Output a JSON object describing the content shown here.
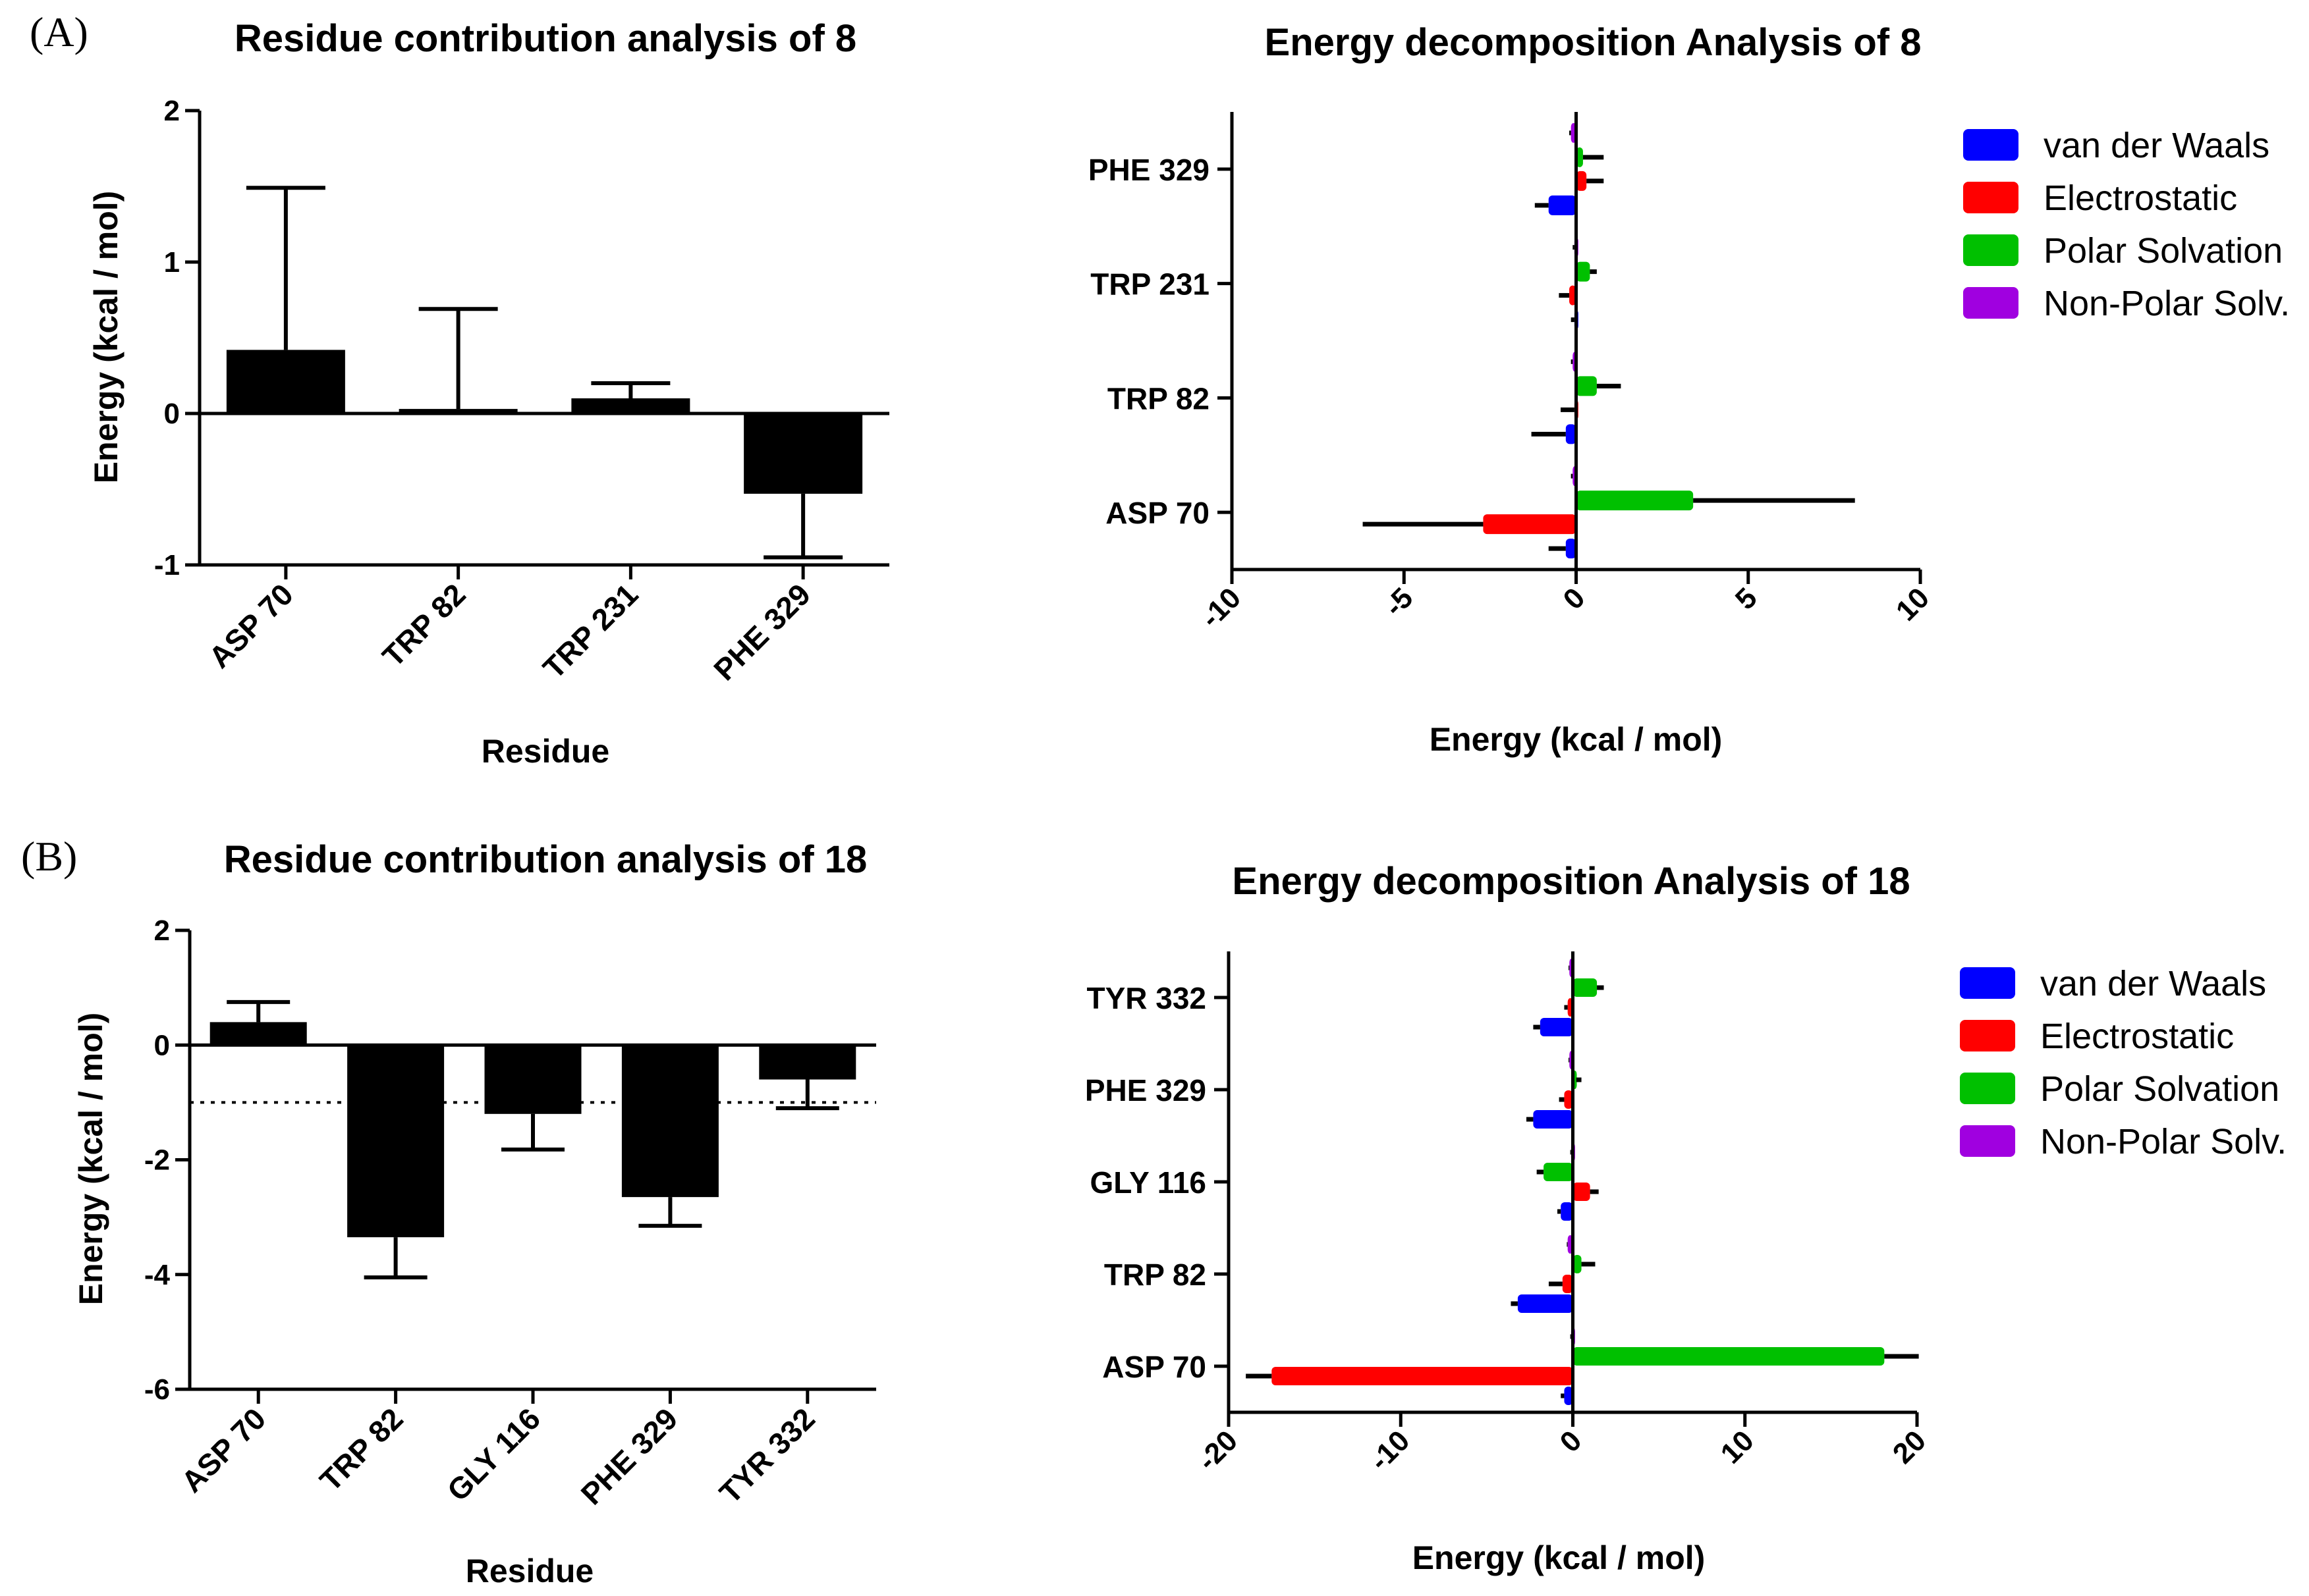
{
  "panel_labels": [
    "(A)",
    "(B)"
  ],
  "colors": {
    "bar": "#000000",
    "van_der_waals": "#0000FF",
    "electrostatic": "#FF0000",
    "polar_solvation": "#00C000",
    "non_polar_solv": "#A000E0"
  },
  "chart_data": [
    {
      "id": "A1",
      "type": "bar",
      "title": "Residue contribution analysis of 8",
      "xlabel": "Residue",
      "ylabel": "Energy (kcal / mol)",
      "categories": [
        "ASP 70",
        "TRP 82",
        "TRP 231",
        "PHE 329"
      ],
      "values": [
        0.42,
        0.03,
        0.1,
        -0.53
      ],
      "errors": [
        1.07,
        0.66,
        0.1,
        0.42
      ],
      "ylim": [
        -1,
        2
      ],
      "yticks": [
        2,
        1,
        0,
        -1
      ],
      "ytick_labels": [
        "2",
        "1",
        "0",
        "-1"
      ],
      "reference_line": null
    },
    {
      "id": "A2",
      "type": "bar",
      "orientation": "horizontal",
      "title": "Energy decomposition Analysis of 8",
      "xlabel": "Energy (kcal / mol)",
      "ylabel": "",
      "categories": [
        "ASP 70",
        "TRP 82",
        "TRP 231",
        "PHE 329"
      ],
      "xlim": [
        -10,
        10
      ],
      "xticks": [
        -10,
        -5,
        0,
        5,
        10
      ],
      "xtick_labels": [
        "-10",
        "-5",
        "0",
        "5",
        "10"
      ],
      "legend_position": "right",
      "series": [
        {
          "name": "van der Waals",
          "values": [
            -0.3,
            -0.3,
            -0.05,
            -0.8
          ],
          "errors": [
            0.5,
            1.0,
            0.1,
            0.4
          ]
        },
        {
          "name": "Electrostatic",
          "values": [
            -2.7,
            -0.05,
            -0.2,
            0.3
          ],
          "errors": [
            3.5,
            0.4,
            0.3,
            0.5
          ]
        },
        {
          "name": "Polar Solvation",
          "values": [
            3.4,
            0.6,
            0.4,
            0.2
          ],
          "errors": [
            4.7,
            0.7,
            0.2,
            0.6
          ]
        },
        {
          "name": "Non-Polar Solv.",
          "values": [
            -0.1,
            -0.1,
            -0.05,
            -0.15
          ],
          "errors": [
            0.05,
            0.05,
            0.05,
            0.05
          ]
        }
      ]
    },
    {
      "id": "B1",
      "type": "bar",
      "title": "Residue contribution analysis of 18",
      "xlabel": "Residue",
      "ylabel": "Energy (kcal / mol)",
      "categories": [
        "ASP 70",
        "TRP 82",
        "GLY 116",
        "PHE 329",
        "TYR 332"
      ],
      "values": [
        0.4,
        -3.35,
        -1.2,
        -2.65,
        -0.6
      ],
      "errors": [
        0.35,
        0.7,
        0.62,
        0.5,
        0.5
      ],
      "ylim": [
        -6,
        2
      ],
      "yticks": [
        2,
        0,
        -2,
        -4,
        -6
      ],
      "ytick_labels": [
        "2",
        "0",
        "-2",
        "-4",
        "-6"
      ],
      "reference_line": -1
    },
    {
      "id": "B2",
      "type": "bar",
      "orientation": "horizontal",
      "title": "Energy decomposition Analysis of 18",
      "xlabel": "Energy (kcal / mol)",
      "ylabel": "",
      "categories": [
        "ASP 70",
        "TRP 82",
        "GLY 116",
        "PHE 329",
        "TYR 332"
      ],
      "xlim": [
        -20,
        20
      ],
      "xticks": [
        -20,
        -10,
        0,
        10,
        20
      ],
      "xtick_labels": [
        "-20",
        "-10",
        "0",
        "10",
        "20"
      ],
      "legend_position": "right",
      "series": [
        {
          "name": "van der Waals",
          "values": [
            -0.5,
            -3.2,
            -0.7,
            -2.3,
            -1.9
          ],
          "errors": [
            0.2,
            0.4,
            0.2,
            0.4,
            0.4
          ]
        },
        {
          "name": "Electrostatic",
          "values": [
            -17.5,
            -0.6,
            1.0,
            -0.5,
            -0.3
          ],
          "errors": [
            1.5,
            0.8,
            0.5,
            0.3,
            0.2
          ]
        },
        {
          "name": "Polar Solvation",
          "values": [
            18.1,
            0.5,
            -1.7,
            0.2,
            1.4
          ],
          "errors": [
            2.0,
            0.8,
            0.4,
            0.3,
            0.4
          ]
        },
        {
          "name": "Non-Polar Solv.",
          "values": [
            -0.1,
            -0.3,
            -0.1,
            -0.2,
            -0.2
          ],
          "errors": [
            0.05,
            0.05,
            0.05,
            0.05,
            0.05
          ]
        }
      ]
    }
  ]
}
